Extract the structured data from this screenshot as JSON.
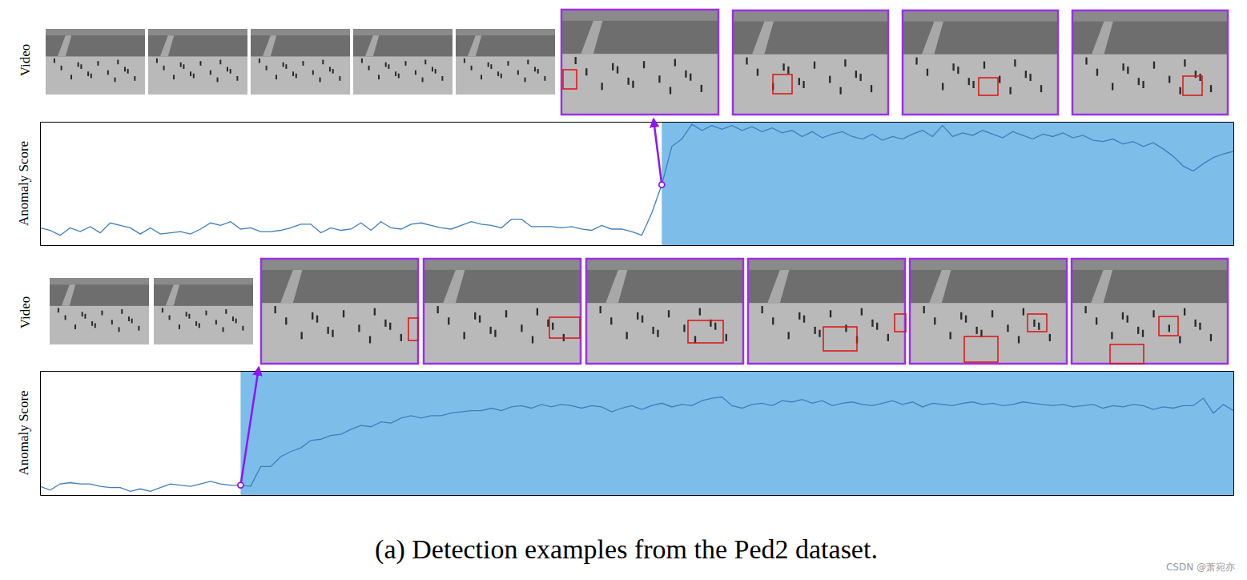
{
  "caption": "(a) Detection examples from the Ped2 dataset.",
  "watermark": "CSDN @萧宛亦",
  "chart_data": [
    {
      "type": "line",
      "image_row_label": "Video",
      "y_label": "Anomaly Score",
      "color": "#3d7fbf",
      "tick_labels": false,
      "xlim": [
        0,
        119
      ],
      "ylim": [
        0,
        1
      ],
      "xticks": [],
      "yticks": [],
      "anomaly_from": 62,
      "x": [
        0,
        1,
        2,
        3,
        4,
        5,
        6,
        7,
        8,
        9,
        10,
        11,
        12,
        13,
        14,
        15,
        16,
        17,
        18,
        19,
        20,
        21,
        22,
        23,
        24,
        25,
        26,
        27,
        28,
        29,
        30,
        31,
        32,
        33,
        34,
        35,
        36,
        37,
        38,
        39,
        40,
        41,
        42,
        43,
        44,
        45,
        46,
        47,
        48,
        49,
        50,
        51,
        52,
        53,
        54,
        55,
        56,
        57,
        58,
        59,
        60,
        61,
        62,
        63,
        64,
        65,
        66,
        67,
        68,
        69,
        70,
        71,
        72,
        73,
        74,
        75,
        76,
        77,
        78,
        79,
        80,
        81,
        82,
        83,
        84,
        85,
        86,
        87,
        88,
        89,
        90,
        91,
        92,
        93,
        94,
        95,
        96,
        97,
        98,
        99,
        100,
        101,
        102,
        103,
        104,
        105,
        106,
        107,
        108,
        109,
        110,
        111,
        112,
        113,
        114,
        115,
        116,
        117,
        118,
        119
      ],
      "values": [
        0.14,
        0.12,
        0.08,
        0.14,
        0.11,
        0.15,
        0.1,
        0.18,
        0.16,
        0.14,
        0.09,
        0.14,
        0.09,
        0.1,
        0.11,
        0.09,
        0.13,
        0.18,
        0.16,
        0.19,
        0.13,
        0.14,
        0.11,
        0.11,
        0.12,
        0.14,
        0.17,
        0.17,
        0.1,
        0.14,
        0.12,
        0.13,
        0.18,
        0.12,
        0.19,
        0.14,
        0.13,
        0.17,
        0.18,
        0.16,
        0.14,
        0.13,
        0.16,
        0.19,
        0.17,
        0.16,
        0.14,
        0.21,
        0.21,
        0.15,
        0.15,
        0.15,
        0.14,
        0.15,
        0.13,
        0.12,
        0.16,
        0.13,
        0.13,
        0.11,
        0.08,
        0.26,
        0.49,
        0.8,
        0.86,
        0.98,
        0.93,
        0.97,
        0.94,
        0.97,
        0.93,
        0.96,
        0.92,
        0.95,
        0.91,
        0.93,
        0.88,
        0.92,
        0.87,
        0.9,
        0.92,
        0.88,
        0.86,
        0.9,
        0.85,
        0.88,
        0.86,
        0.9,
        0.93,
        0.88,
        0.97,
        0.88,
        0.91,
        0.89,
        0.93,
        0.9,
        0.87,
        0.92,
        0.89,
        0.86,
        0.9,
        0.88,
        0.91,
        0.87,
        0.89,
        0.85,
        0.84,
        0.86,
        0.82,
        0.84,
        0.8,
        0.83,
        0.78,
        0.72,
        0.64,
        0.6,
        0.66,
        0.71,
        0.74,
        0.76
      ]
    },
    {
      "type": "line",
      "image_row_label": "Video",
      "y_label": "Anomaly Score",
      "color": "#3d7fbf",
      "tick_labels": false,
      "xlim": [
        0,
        119
      ],
      "ylim": [
        0,
        1
      ],
      "xticks": [],
      "yticks": [],
      "anomaly_from": 20,
      "x": [
        0,
        1,
        2,
        3,
        4,
        5,
        6,
        7,
        8,
        9,
        10,
        11,
        12,
        13,
        14,
        15,
        16,
        17,
        18,
        19,
        20,
        21,
        22,
        23,
        24,
        25,
        26,
        27,
        28,
        29,
        30,
        31,
        32,
        33,
        34,
        35,
        36,
        37,
        38,
        39,
        40,
        41,
        42,
        43,
        44,
        45,
        46,
        47,
        48,
        49,
        50,
        51,
        52,
        53,
        54,
        55,
        56,
        57,
        58,
        59,
        60,
        61,
        62,
        63,
        64,
        65,
        66,
        67,
        68,
        69,
        70,
        71,
        72,
        73,
        74,
        75,
        76,
        77,
        78,
        79,
        80,
        81,
        82,
        83,
        84,
        85,
        86,
        87,
        88,
        89,
        90,
        91,
        92,
        93,
        94,
        95,
        96,
        97,
        98,
        99,
        100,
        101,
        102,
        103,
        104,
        105,
        106,
        107,
        108,
        109,
        110,
        111,
        112,
        113,
        114,
        115,
        116,
        117,
        118,
        119
      ],
      "values": [
        0.07,
        0.04,
        0.09,
        0.1,
        0.09,
        0.09,
        0.07,
        0.06,
        0.06,
        0.03,
        0.05,
        0.03,
        0.06,
        0.09,
        0.08,
        0.07,
        0.09,
        0.11,
        0.09,
        0.08,
        0.08,
        0.07,
        0.23,
        0.23,
        0.31,
        0.35,
        0.38,
        0.44,
        0.45,
        0.48,
        0.49,
        0.53,
        0.56,
        0.55,
        0.59,
        0.58,
        0.62,
        0.64,
        0.62,
        0.64,
        0.64,
        0.66,
        0.67,
        0.68,
        0.68,
        0.7,
        0.68,
        0.71,
        0.72,
        0.7,
        0.73,
        0.71,
        0.73,
        0.72,
        0.7,
        0.72,
        0.71,
        0.67,
        0.7,
        0.72,
        0.69,
        0.72,
        0.74,
        0.71,
        0.73,
        0.72,
        0.76,
        0.78,
        0.79,
        0.72,
        0.7,
        0.73,
        0.74,
        0.72,
        0.76,
        0.75,
        0.77,
        0.74,
        0.76,
        0.72,
        0.74,
        0.75,
        0.73,
        0.72,
        0.74,
        0.76,
        0.73,
        0.75,
        0.71,
        0.74,
        0.73,
        0.72,
        0.74,
        0.75,
        0.73,
        0.74,
        0.72,
        0.73,
        0.75,
        0.74,
        0.73,
        0.72,
        0.73,
        0.71,
        0.72,
        0.73,
        0.7,
        0.72,
        0.71,
        0.73,
        0.72,
        0.69,
        0.71,
        0.7,
        0.72,
        0.72,
        0.78,
        0.66,
        0.73,
        0.68
      ]
    }
  ]
}
